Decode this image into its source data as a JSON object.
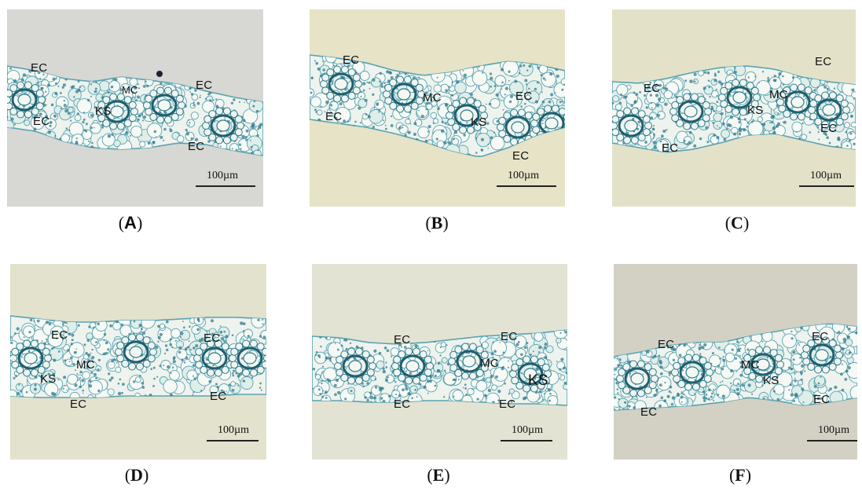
{
  "panels": [
    {
      "id": "A",
      "caption_open": "(",
      "caption_letter": "A",
      "caption_close": ")",
      "scale_label": "100µm",
      "bg": "#d7d8d3",
      "labels": [
        {
          "text": "EC"
        },
        {
          "text": "MC"
        },
        {
          "text": "EC"
        },
        {
          "text": "KS"
        },
        {
          "text": "EC"
        },
        {
          "text": "EC"
        }
      ]
    },
    {
      "id": "B",
      "caption_open": "(",
      "caption_letter": "B",
      "caption_close": ")",
      "scale_label": "100µm",
      "bg": "#e6e3c7",
      "labels": [
        {
          "text": "EC"
        },
        {
          "text": "MC"
        },
        {
          "text": "EC"
        },
        {
          "text": "EC"
        },
        {
          "text": "KS"
        },
        {
          "text": "EC"
        }
      ]
    },
    {
      "id": "C",
      "caption_open": "(",
      "caption_letter": "C",
      "caption_close": ")",
      "scale_label": "100µm",
      "bg": "#e3e2c9",
      "labels": [
        {
          "text": "EC"
        },
        {
          "text": "EC"
        },
        {
          "text": "MC"
        },
        {
          "text": "KS"
        },
        {
          "text": "EC"
        },
        {
          "text": "EC"
        }
      ]
    },
    {
      "id": "D",
      "caption_open": "(",
      "caption_letter": "D",
      "caption_close": ")",
      "scale_label": "100µm",
      "bg": "#e3e2cd",
      "labels": [
        {
          "text": "EC"
        },
        {
          "text": "EC"
        },
        {
          "text": "MC"
        },
        {
          "text": "KS"
        },
        {
          "text": "EC"
        },
        {
          "text": "EC"
        }
      ]
    },
    {
      "id": "E",
      "caption_open": "(",
      "caption_letter": "E",
      "caption_close": ")",
      "scale_label": "100µm",
      "bg": "#e3e3d3",
      "labels": [
        {
          "text": "EC"
        },
        {
          "text": "EC"
        },
        {
          "text": "MC"
        },
        {
          "text": "KS"
        },
        {
          "text": "EC"
        },
        {
          "text": "EC"
        }
      ]
    },
    {
      "id": "F",
      "caption_open": "(",
      "caption_letter": "F",
      "caption_close": ")",
      "scale_label": "100µm",
      "bg": "#d2d1c4",
      "labels": [
        {
          "text": "EC"
        },
        {
          "text": "EC"
        },
        {
          "text": "MC"
        },
        {
          "text": "KS"
        },
        {
          "text": "EC"
        },
        {
          "text": "EC"
        }
      ]
    }
  ],
  "colors": {
    "tissue": "#eef3ee",
    "cell_wall": "#5aa3b2",
    "stain": "#2f7a8c",
    "dark_stain": "#1f5e6e"
  }
}
